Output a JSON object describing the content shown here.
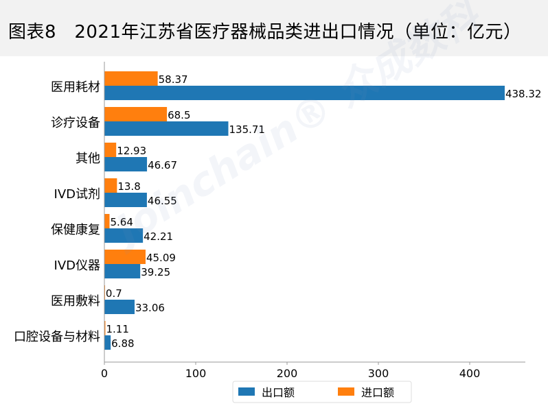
{
  "header": {
    "title": "图表8   2021年江苏省医疗器械品类进出口情况（单位：亿元）"
  },
  "watermark": "Joinchain® 众成数科",
  "chart_data": {
    "type": "bar",
    "orientation": "horizontal",
    "categories": [
      "医用耗材",
      "诊疗设备",
      "其他",
      "IVD试剂",
      "保健康复",
      "IVD仪器",
      "医用敷料",
      "口腔设备与材料"
    ],
    "series": [
      {
        "name": "出口额",
        "color": "#1f77b4",
        "values": [
          438.32,
          135.71,
          46.67,
          46.55,
          42.21,
          39.25,
          33.06,
          6.88
        ],
        "labels": [
          "438.32",
          "135.71",
          "46.67",
          "46.55",
          "42.21",
          "39.25",
          "33.06",
          "6.88"
        ]
      },
      {
        "name": "进口额",
        "color": "#ff7f0e",
        "values": [
          58.37,
          68.5,
          12.93,
          13.8,
          5.64,
          45.09,
          0.7,
          1.11
        ],
        "labels": [
          "58.37",
          "68.5",
          "12.93",
          "13.8",
          "5.64",
          "45.09",
          "0.7",
          "1.11"
        ]
      }
    ],
    "xticks": [
      "0",
      "100",
      "200",
      "300",
      "400"
    ],
    "xlim": [
      0,
      461
    ],
    "grid": false,
    "legend": "bottom-center"
  }
}
